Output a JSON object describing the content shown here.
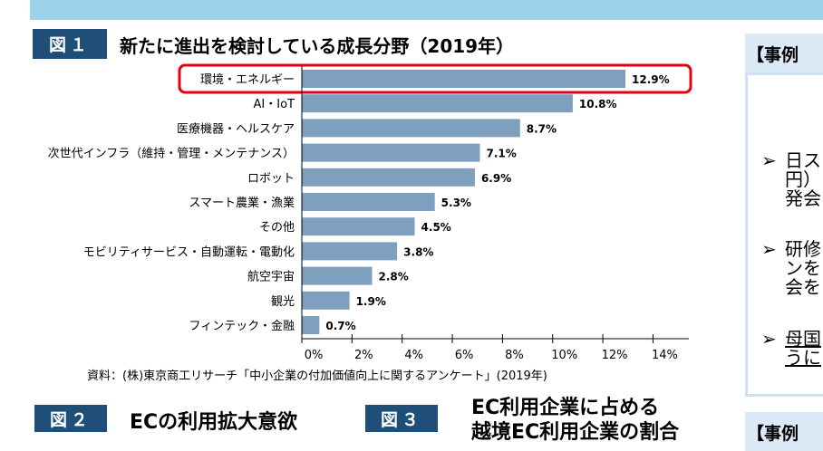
{
  "fig1": {
    "badge": "図１",
    "title": "新たに進出を検討している成長分野（2019年）"
  },
  "chart_data": {
    "type": "bar",
    "orientation": "horizontal",
    "categories": [
      "環境・エネルギー",
      "AI・IoT",
      "医療機器・ヘルスケア",
      "次世代インフラ（維持・管理・メンテナンス）",
      "ロボット",
      "スマート農業・漁業",
      "その他",
      "モビリティサービス・自動運転・電動化",
      "航空宇宙",
      "観光",
      "フィンテック・金融"
    ],
    "values": [
      12.9,
      10.8,
      8.7,
      7.1,
      6.9,
      5.3,
      4.5,
      3.8,
      2.8,
      1.9,
      0.7
    ],
    "value_labels": [
      "12.9%",
      "10.8%",
      "8.7%",
      "7.1%",
      "6.9%",
      "5.3%",
      "4.5%",
      "3.8%",
      "2.8%",
      "1.9%",
      "0.7%"
    ],
    "xlim": [
      0,
      14
    ],
    "xticks": [
      "0%",
      "2%",
      "4%",
      "6%",
      "8%",
      "10%",
      "12%",
      "14%"
    ],
    "highlighted": "環境・エネルギー",
    "bar_color": "#7f9fbf",
    "highlight_color": "#e60012",
    "grid": false
  },
  "source": "資料：(株)東京商工リサーチ「中小企業の付加価値向上に関するアンケート」(2019年)",
  "fig2": {
    "badge": "図２",
    "title": "ECの利用拡大意欲"
  },
  "fig3": {
    "badge": "図３",
    "title_line1": "EC利用企業に占める",
    "title_line2": "越境EC利用企業の割合"
  },
  "case1": {
    "header": "【事例",
    "bullets": [
      [
        "日ス",
        "円）",
        "発会"
      ],
      [
        "研修",
        "ンを",
        "会を"
      ],
      [
        "母国",
        "うに"
      ]
    ]
  },
  "case2": {
    "header": "【事例"
  }
}
